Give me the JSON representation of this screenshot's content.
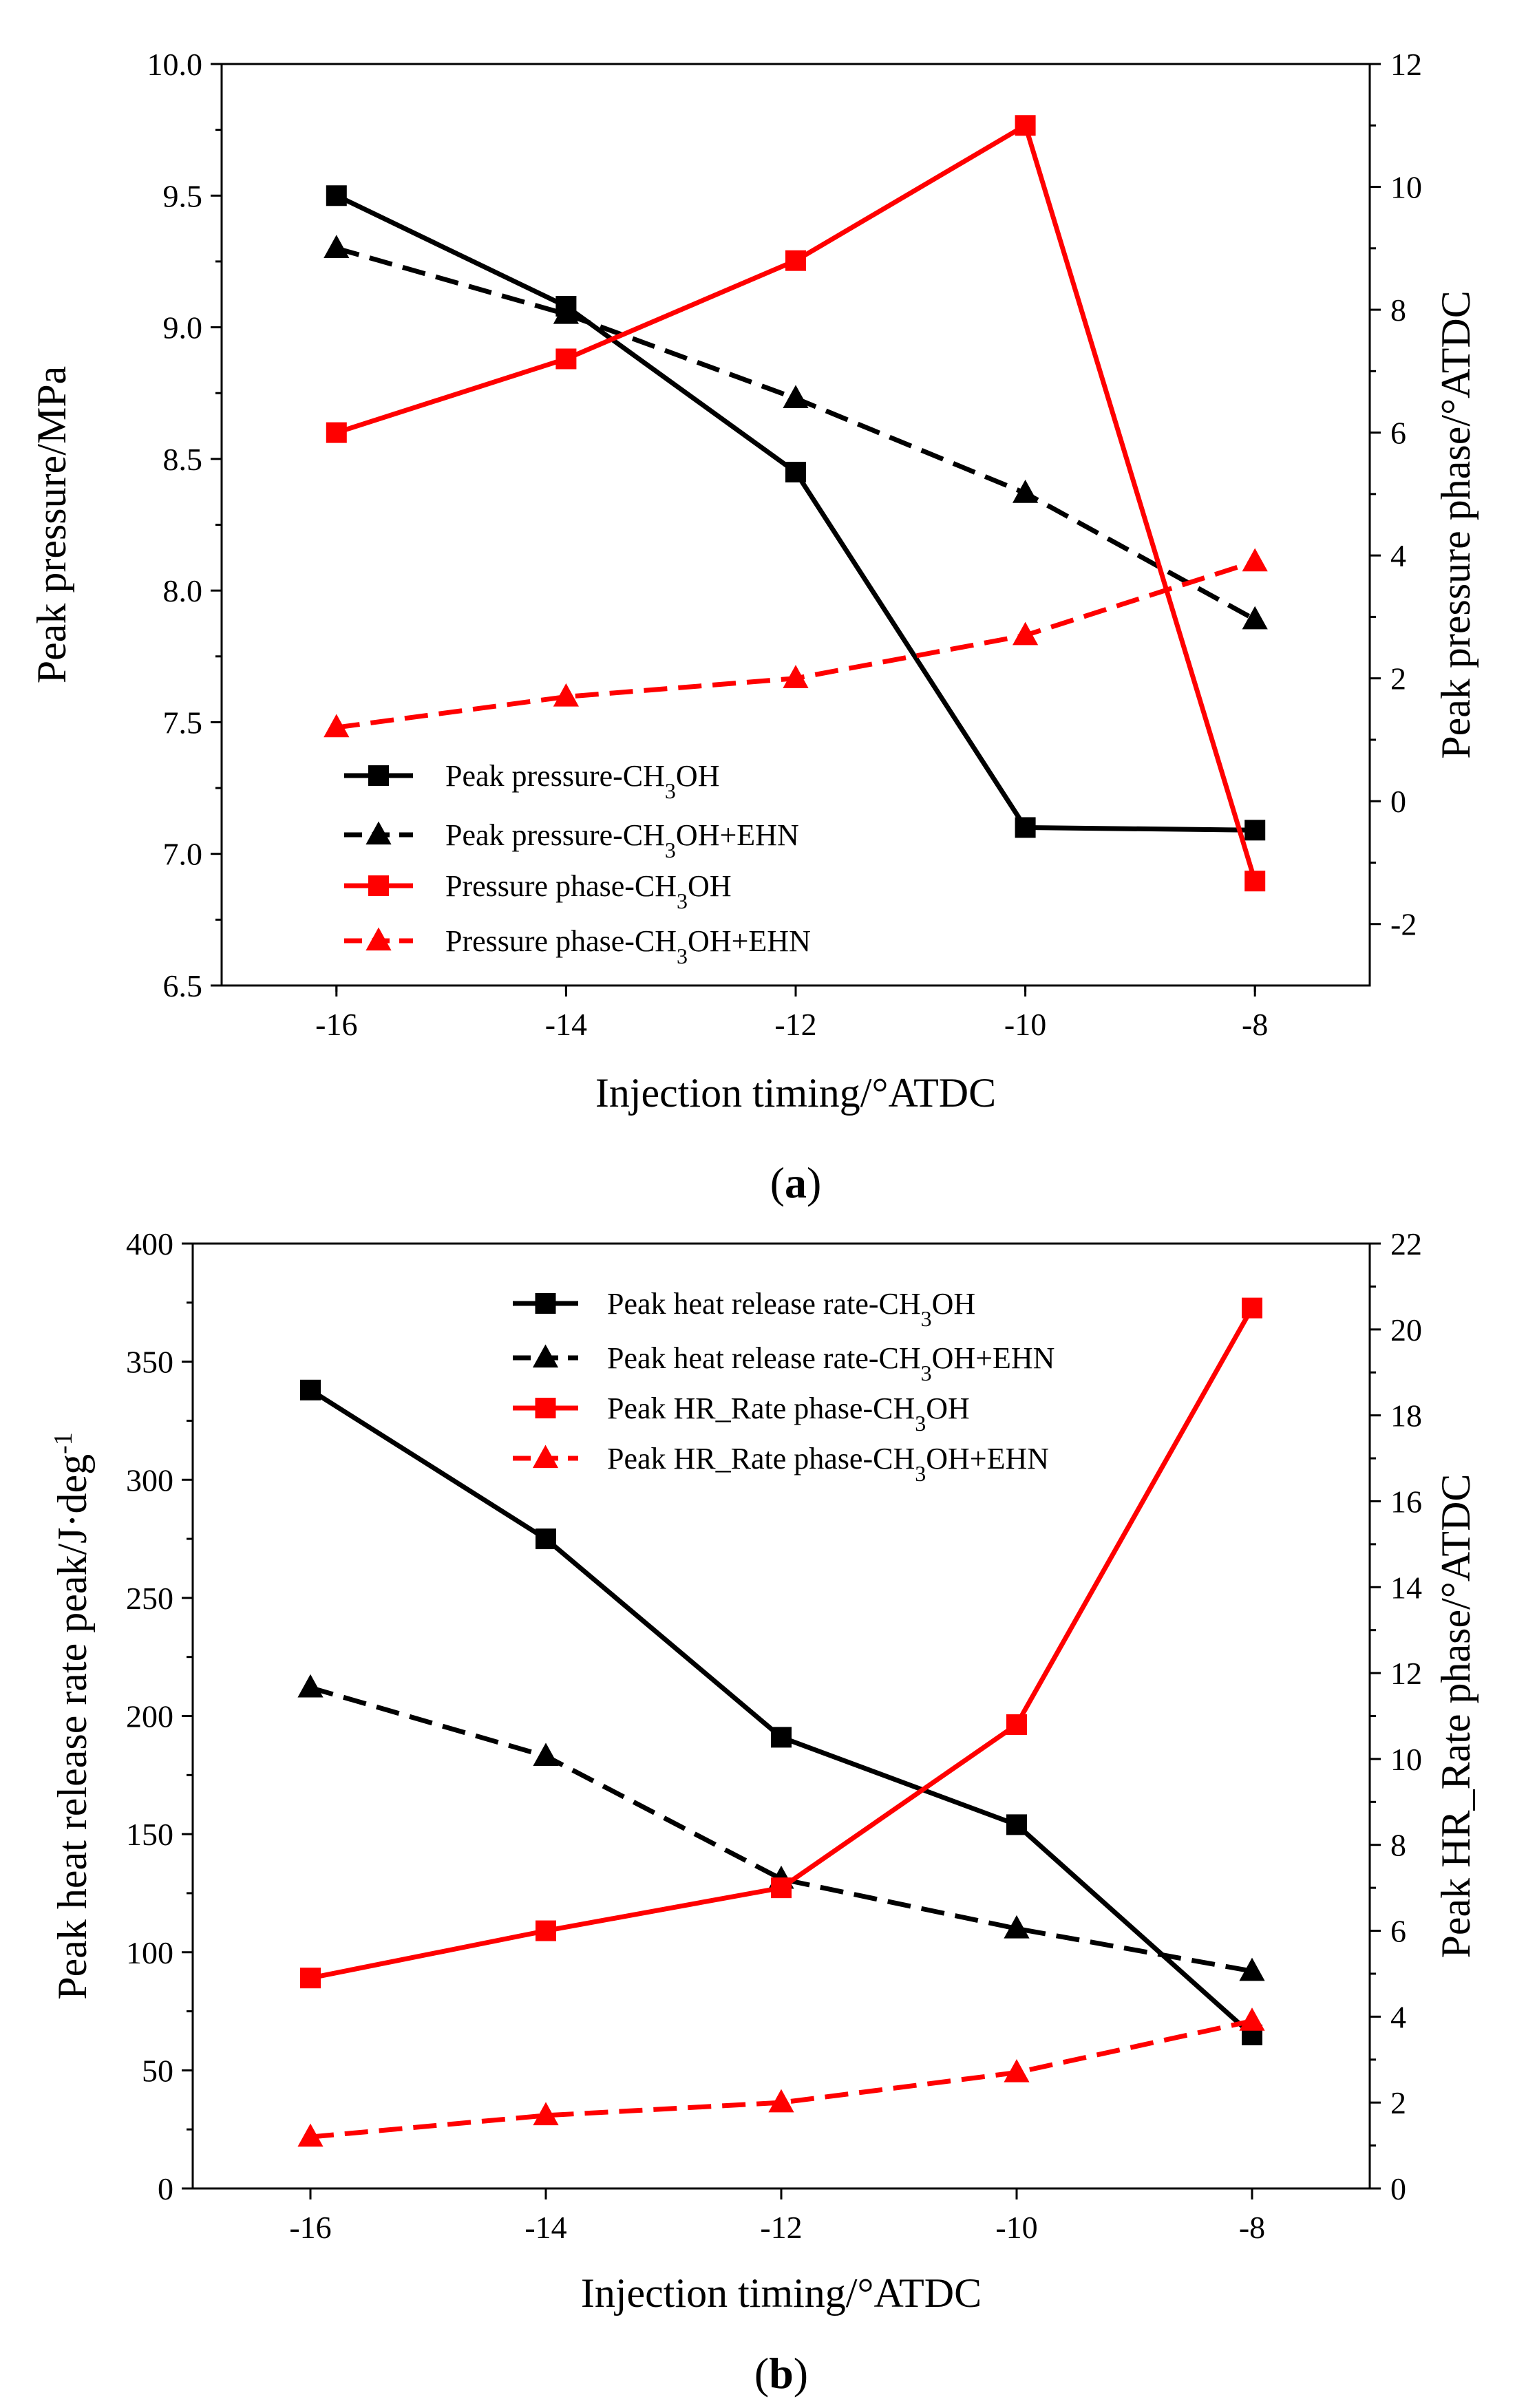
{
  "colors": {
    "black": "#000000",
    "red": "#ff0000"
  },
  "chart_data": [
    {
      "type": "line",
      "panel": "a",
      "caption": {
        "open": "(",
        "letter": "a",
        "close": ")"
      },
      "xlabel": "Injection timing/°ATDC",
      "ylabel": "Peak pressure/MPa",
      "y2label": "Peak pressure phase/°ATDC",
      "xlim": [
        -17,
        -7
      ],
      "ylim": [
        6.5,
        10.0
      ],
      "y2lim": [
        -3,
        12
      ],
      "xticks": [
        -16,
        -14,
        -12,
        -10,
        -8
      ],
      "xtick_labels": [
        "-16",
        "-14",
        "-12",
        "-10",
        "-8"
      ],
      "yticks": [
        6.5,
        7.0,
        7.5,
        8.0,
        8.5,
        9.0,
        9.5,
        10.0
      ],
      "ytick_labels": [
        "6.5",
        "7.0",
        "7.5",
        "8.0",
        "8.5",
        "9.0",
        "9.5",
        "10.0"
      ],
      "y2ticks": [
        -2,
        0,
        2,
        4,
        6,
        8,
        10,
        12
      ],
      "y2tick_labels": [
        "-2",
        "0",
        "2",
        "4",
        "6",
        "8",
        "10",
        "12"
      ],
      "legend_position": "bottom-left",
      "series": [
        {
          "name": "Peak pressure-CH3OH",
          "label_parts": [
            "Peak pressure-CH",
            "3",
            "OH"
          ],
          "axis": "left",
          "color": "black",
          "dash": "solid",
          "marker": "square",
          "x": [
            -16,
            -14,
            -12,
            -10,
            -8
          ],
          "y": [
            9.5,
            9.08,
            8.45,
            7.1,
            7.09
          ]
        },
        {
          "name": "Peak pressure-CH3OH+EHN",
          "label_parts": [
            "Peak pressure-CH",
            "3",
            "OH+EHN"
          ],
          "axis": "left",
          "color": "black",
          "dash": "dashed",
          "marker": "triangle",
          "x": [
            -16,
            -14,
            -12,
            -10,
            -8
          ],
          "y": [
            9.3,
            9.05,
            8.73,
            8.37,
            7.89
          ]
        },
        {
          "name": "Pressure phase-CH3OH",
          "label_parts": [
            "Pressure phase-CH",
            "3",
            "OH"
          ],
          "axis": "right",
          "color": "red",
          "dash": "solid",
          "marker": "square",
          "x": [
            -16,
            -14,
            -12,
            -10,
            -8
          ],
          "y": [
            6.0,
            7.2,
            8.8,
            11.0,
            -1.3
          ]
        },
        {
          "name": "Pressure phase-CH3OH+EHN",
          "label_parts": [
            "Pressure phase-CH",
            "3",
            "OH+EHN"
          ],
          "axis": "right",
          "color": "red",
          "dash": "dashed",
          "marker": "triangle",
          "x": [
            -16,
            -14,
            -12,
            -10,
            -8
          ],
          "y": [
            1.2,
            1.7,
            2.0,
            2.7,
            3.9
          ]
        }
      ]
    },
    {
      "type": "line",
      "panel": "b",
      "caption": {
        "open": "(",
        "letter": "b",
        "close": ")"
      },
      "xlabel": "Injection timing/°ATDC",
      "ylabel_parts": [
        "Peak heat release rate peak/J·deg",
        "-1"
      ],
      "y2label": "Peak HR_Rate phase/°ATDC",
      "xlim": [
        -17,
        -7
      ],
      "ylim": [
        0,
        400
      ],
      "y2lim": [
        0,
        22
      ],
      "xticks": [
        -16,
        -14,
        -12,
        -10,
        -8
      ],
      "xtick_labels": [
        "-16",
        "-14",
        "-12",
        "-10",
        "-8"
      ],
      "yticks": [
        0,
        50,
        100,
        150,
        200,
        250,
        300,
        350,
        400
      ],
      "ytick_labels": [
        "0",
        "50",
        "100",
        "150",
        "200",
        "250",
        "300",
        "350",
        "400"
      ],
      "y2ticks": [
        0,
        2,
        4,
        6,
        8,
        10,
        12,
        14,
        16,
        18,
        20,
        22
      ],
      "y2tick_labels": [
        "0",
        "2",
        "4",
        "6",
        "8",
        "10",
        "12",
        "14",
        "16",
        "18",
        "20",
        "22"
      ],
      "legend_position": "top-right",
      "series": [
        {
          "name": "Peak heat release rate-CH3OH",
          "label_parts": [
            "Peak heat release rate-CH",
            "3",
            "OH"
          ],
          "axis": "left",
          "color": "black",
          "dash": "solid",
          "marker": "square",
          "x": [
            -16,
            -14,
            -12,
            -10,
            -8
          ],
          "y": [
            338,
            275,
            191,
            154,
            65
          ]
        },
        {
          "name": "Peak heat release rate-CH3OH+EHN",
          "label_parts": [
            "Peak heat release rate-CH",
            "3",
            "OH+EHN"
          ],
          "axis": "left",
          "color": "black",
          "dash": "dashed",
          "marker": "triangle",
          "x": [
            -16,
            -14,
            -12,
            -10,
            -8
          ],
          "y": [
            212,
            183,
            131,
            110,
            92
          ]
        },
        {
          "name": "Peak HR_Rate phase-CH3OH",
          "label_parts": [
            "Peak HR_Rate phase-CH",
            "3",
            "OH"
          ],
          "axis": "right",
          "color": "red",
          "dash": "solid",
          "marker": "square",
          "x": [
            -16,
            -14,
            -12,
            -10,
            -8
          ],
          "y": [
            4.9,
            6.0,
            7.0,
            10.8,
            20.5
          ]
        },
        {
          "name": "Peak HR_Rate phase-CH3OH+EHN",
          "label_parts": [
            "Peak HR_Rate phase-CH",
            "3",
            "OH+EHN"
          ],
          "axis": "right",
          "color": "red",
          "dash": "dashed",
          "marker": "triangle",
          "x": [
            -16,
            -14,
            -12,
            -10,
            -8
          ],
          "y": [
            1.2,
            1.7,
            2.0,
            2.7,
            3.9
          ]
        }
      ]
    }
  ]
}
